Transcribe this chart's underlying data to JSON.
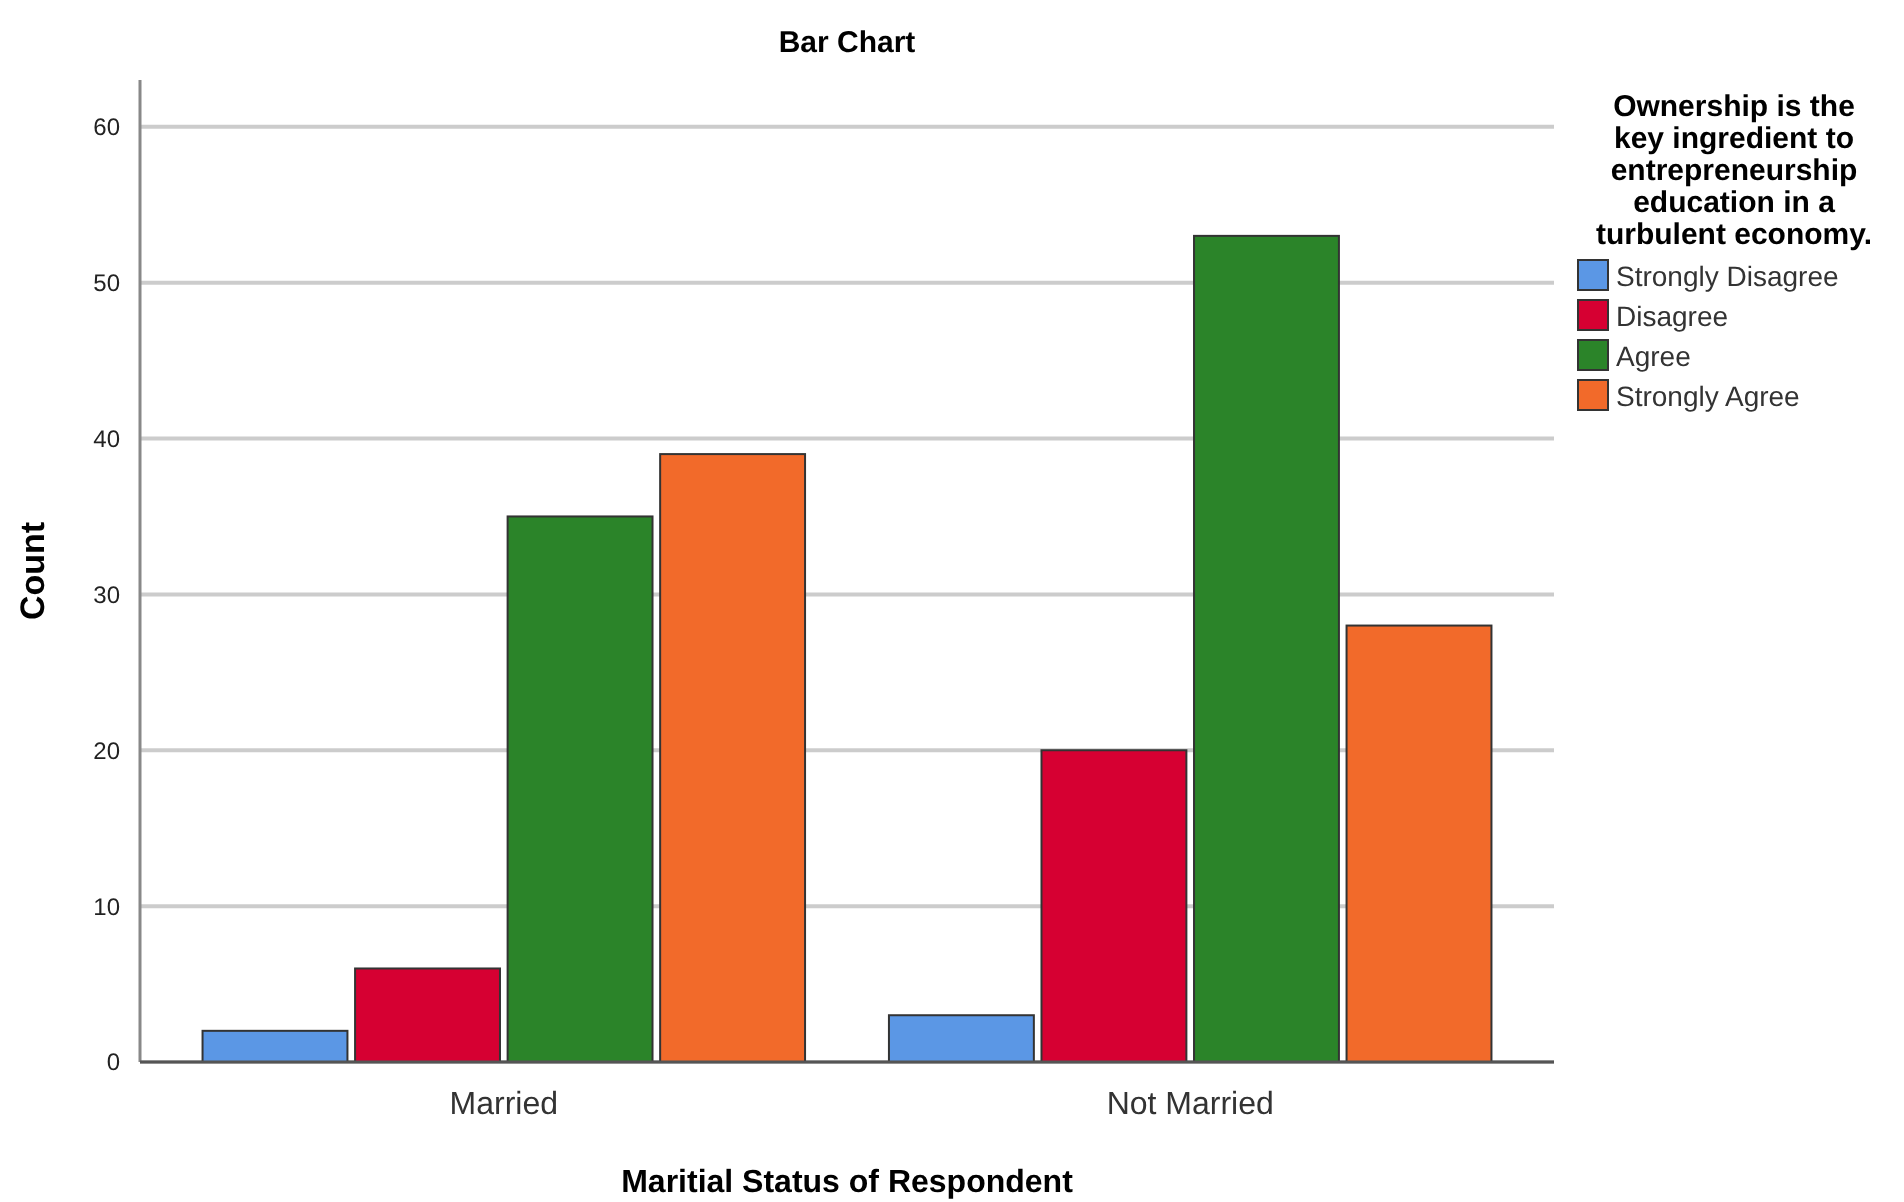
{
  "chart_data": {
    "type": "bar",
    "title": "Bar Chart",
    "xlabel": "Maritial Status of Respondent",
    "ylabel": "Count",
    "legend_title": "Ownership is the key ingredient to entrepreneurship education in a turbulent economy.",
    "categories": [
      "Married",
      "Not Married"
    ],
    "series": [
      {
        "name": "Strongly Disagree",
        "color": "#5b97e5",
        "values": [
          2,
          3
        ]
      },
      {
        "name": "Disagree",
        "color": "#d60032",
        "values": [
          6,
          20
        ]
      },
      {
        "name": "Agree",
        "color": "#2b8429",
        "values": [
          35,
          53
        ]
      },
      {
        "name": "Strongly Agree",
        "color": "#f26a2a",
        "values": [
          39,
          28
        ]
      }
    ],
    "ylim": [
      0,
      63
    ],
    "yticks": [
      0,
      10,
      20,
      30,
      40,
      50,
      60
    ],
    "grid": "y",
    "legend": "right"
  }
}
